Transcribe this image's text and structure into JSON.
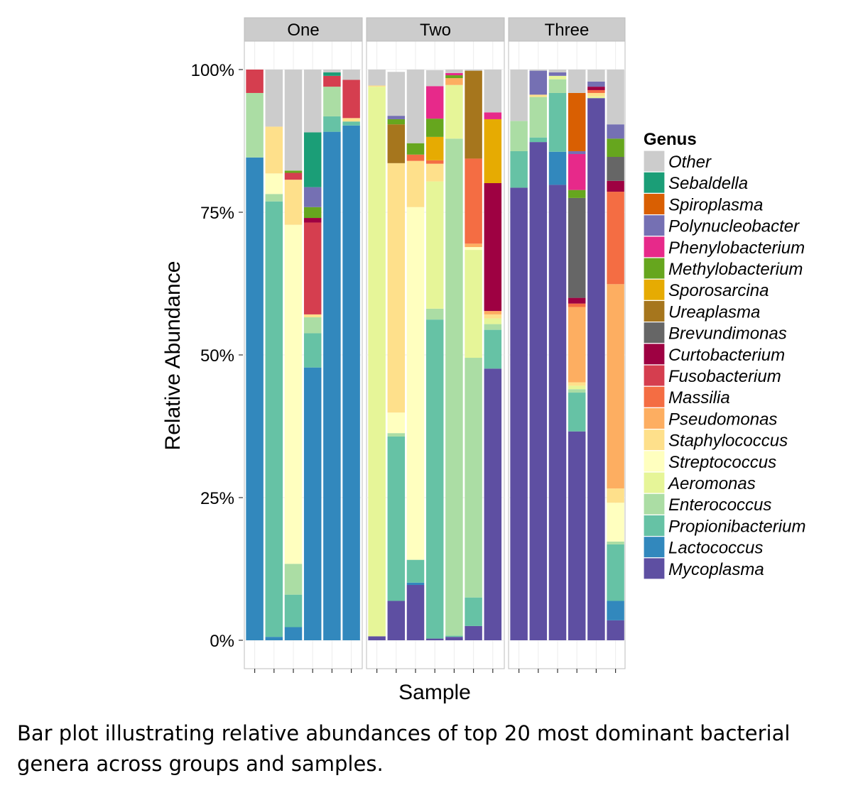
{
  "caption": "Bar plot illustrating relative abundances of top 20 most dominant bacterial genera across groups and samples.",
  "chart_data": {
    "type": "bar",
    "stacked": true,
    "faceted": true,
    "xlabel": "Sample",
    "ylabel": "Relative Abundance",
    "ylim": [
      0,
      100
    ],
    "y_ticks": [
      "0%",
      "25%",
      "50%",
      "75%",
      "100%"
    ],
    "grid": true,
    "legend": {
      "title": "Genus",
      "placement": "right",
      "entries": [
        {
          "name": "Other",
          "color": "#cccccc"
        },
        {
          "name": "Sebaldella",
          "color": "#1b9e77"
        },
        {
          "name": "Spiroplasma",
          "color": "#d95f02"
        },
        {
          "name": "Polynucleobacter",
          "color": "#7570b3"
        },
        {
          "name": "Phenylobacterium",
          "color": "#e7298a"
        },
        {
          "name": "Methylobacterium",
          "color": "#66a61e"
        },
        {
          "name": "Sporosarcina",
          "color": "#e6ab02"
        },
        {
          "name": "Ureaplasma",
          "color": "#a6761d"
        },
        {
          "name": "Brevundimonas",
          "color": "#666666"
        },
        {
          "name": "Curtobacterium",
          "color": "#9e0142"
        },
        {
          "name": "Fusobacterium",
          "color": "#d53e4f"
        },
        {
          "name": "Massilia",
          "color": "#f46d43"
        },
        {
          "name": "Pseudomonas",
          "color": "#fdae61"
        },
        {
          "name": "Staphylococcus",
          "color": "#fee08b"
        },
        {
          "name": "Streptococcus",
          "color": "#ffffbf"
        },
        {
          "name": "Aeromonas",
          "color": "#e6f598"
        },
        {
          "name": "Enterococcus",
          "color": "#abdda4"
        },
        {
          "name": "Propionibacterium",
          "color": "#66c2a5"
        },
        {
          "name": "Lactococcus",
          "color": "#3288bd"
        },
        {
          "name": "Mycoplasma",
          "color": "#5e4fa2"
        }
      ]
    },
    "facets": [
      {
        "name": "One",
        "bars": [
          [
            [
              "Lactococcus",
              84.6
            ],
            [
              "Enterococcus",
              11.3
            ],
            [
              "Fusobacterium",
              4.1
            ]
          ],
          [
            [
              "Lactococcus",
              0.6
            ],
            [
              "Propionibacterium",
              76.3
            ],
            [
              "Enterococcus",
              1.3
            ],
            [
              "Streptococcus",
              3.6
            ],
            [
              "Staphylococcus",
              8.2
            ],
            [
              "Other",
              10.0
            ]
          ],
          [
            [
              "Lactococcus",
              2.3
            ],
            [
              "Propionibacterium",
              5.7
            ],
            [
              "Enterococcus",
              5.4
            ],
            [
              "Streptococcus",
              59.4
            ],
            [
              "Staphylococcus",
              7.9
            ],
            [
              "Fusobacterium",
              1.2
            ],
            [
              "Methylobacterium",
              0.4
            ],
            [
              "Other",
              17.7
            ]
          ],
          [
            [
              "Lactococcus",
              47.8
            ],
            [
              "Propionibacterium",
              6.0
            ],
            [
              "Enterococcus",
              2.8
            ],
            [
              "Staphylococcus",
              0.5
            ],
            [
              "Fusobacterium",
              16.1
            ],
            [
              "Curtobacterium",
              0.8
            ],
            [
              "Methylobacterium",
              1.9
            ],
            [
              "Polynucleobacter",
              3.5
            ],
            [
              "Sebaldella",
              9.6
            ],
            [
              "Other",
              11.0
            ]
          ],
          [
            [
              "Lactococcus",
              89.1
            ],
            [
              "Propionibacterium",
              2.7
            ],
            [
              "Enterococcus",
              5.2
            ],
            [
              "Fusobacterium",
              1.9
            ],
            [
              "Sebaldella",
              0.6
            ],
            [
              "Other",
              0.5
            ]
          ],
          [
            [
              "Lactococcus",
              90.2
            ],
            [
              "Propionibacterium",
              0.7
            ],
            [
              "Staphylococcus",
              0.6
            ],
            [
              "Fusobacterium",
              6.7
            ],
            [
              "Other",
              1.8
            ]
          ]
        ]
      },
      {
        "name": "Two",
        "bars": [
          [
            [
              "Mycoplasma",
              0.7
            ],
            [
              "Aeromonas",
              96.3
            ],
            [
              "Staphylococcus",
              0.2
            ],
            [
              "Other",
              2.8
            ]
          ],
          [
            [
              "Mycoplasma",
              6.9
            ],
            [
              "Propionibacterium",
              28.8
            ],
            [
              "Enterococcus",
              0.6
            ],
            [
              "Streptococcus",
              3.6
            ],
            [
              "Staphylococcus",
              43.7
            ],
            [
              "Ureaplasma",
              6.8
            ],
            [
              "Methylobacterium",
              0.9
            ],
            [
              "Polynucleobacter",
              0.6
            ],
            [
              "Other",
              7.7
            ]
          ],
          [
            [
              "Mycoplasma",
              9.7
            ],
            [
              "Lactococcus",
              0.4
            ],
            [
              "Propionibacterium",
              4.0
            ],
            [
              "Streptococcus",
              61.8
            ],
            [
              "Staphylococcus",
              8.1
            ],
            [
              "Massilia",
              1.1
            ],
            [
              "Methylobacterium",
              2.0
            ],
            [
              "Other",
              12.9
            ]
          ],
          [
            [
              "Mycoplasma",
              0.3
            ],
            [
              "Propionibacterium",
              55.9
            ],
            [
              "Enterococcus",
              1.9
            ],
            [
              "Aeromonas",
              22.3
            ],
            [
              "Staphylococcus",
              3.1
            ],
            [
              "Massilia",
              0.6
            ],
            [
              "Sporosarcina",
              4.1
            ],
            [
              "Methylobacterium",
              3.2
            ],
            [
              "Phenylobacterium",
              5.7
            ],
            [
              "Other",
              2.8
            ]
          ],
          [
            [
              "Mycoplasma",
              0.6
            ],
            [
              "Propionibacterium",
              0.2
            ],
            [
              "Enterococcus",
              87.1
            ],
            [
              "Aeromonas",
              9.4
            ],
            [
              "Pseudomonas",
              1.2
            ],
            [
              "Methylobacterium",
              0.5
            ],
            [
              "Phenylobacterium",
              0.4
            ],
            [
              "Other",
              0.6
            ]
          ],
          [
            [
              "Mycoplasma",
              2.5
            ],
            [
              "Propionibacterium",
              5.0
            ],
            [
              "Enterococcus",
              42.0
            ],
            [
              "Aeromonas",
              18.9
            ],
            [
              "Streptococcus",
              0.5
            ],
            [
              "Pseudomonas",
              0.6
            ],
            [
              "Massilia",
              14.9
            ],
            [
              "Ureaplasma",
              15.4
            ],
            [
              "Other",
              0.2
            ]
          ],
          [
            [
              "Mycoplasma",
              47.6
            ],
            [
              "Propionibacterium",
              6.8
            ],
            [
              "Enterococcus",
              1.0
            ],
            [
              "Aeromonas",
              1.0
            ],
            [
              "Staphylococcus",
              0.7
            ],
            [
              "Pseudomonas",
              0.6
            ],
            [
              "Curtobacterium",
              22.4
            ],
            [
              "Sporosarcina",
              11.2
            ],
            [
              "Phenylobacterium",
              1.2
            ],
            [
              "Other",
              7.5
            ]
          ]
        ]
      },
      {
        "name": "Three",
        "bars": [
          [
            [
              "Mycoplasma",
              79.3
            ],
            [
              "Propionibacterium",
              6.4
            ],
            [
              "Enterococcus",
              5.3
            ],
            [
              "Other",
              9.0
            ]
          ],
          [
            [
              "Mycoplasma",
              87.3
            ],
            [
              "Propionibacterium",
              0.8
            ],
            [
              "Enterococcus",
              7.1
            ],
            [
              "Staphylococcus",
              0.4
            ],
            [
              "Polynucleobacter",
              4.2
            ],
            [
              "Other",
              0.2
            ]
          ],
          [
            [
              "Mycoplasma",
              79.8
            ],
            [
              "Lactococcus",
              5.8
            ],
            [
              "Propionibacterium",
              10.3
            ],
            [
              "Enterococcus",
              2.4
            ],
            [
              "Aeromonas",
              0.6
            ],
            [
              "Polynucleobacter",
              0.6
            ],
            [
              "Other",
              0.5
            ]
          ],
          [
            [
              "Mycoplasma",
              36.6
            ],
            [
              "Propionibacterium",
              6.8
            ],
            [
              "Enterococcus",
              0.6
            ],
            [
              "Aeromonas",
              0.6
            ],
            [
              "Staphylococcus",
              0.6
            ],
            [
              "Pseudomonas",
              13.2
            ],
            [
              "Massilia",
              0.6
            ],
            [
              "Curtobacterium",
              1.0
            ],
            [
              "Brevundimonas",
              17.5
            ],
            [
              "Methylobacterium",
              1.4
            ],
            [
              "Phenylobacterium",
              6.3
            ],
            [
              "Polynucleobacter",
              0.5
            ],
            [
              "Spiroplasma",
              10.2
            ],
            [
              "Other",
              4.1
            ]
          ],
          [
            [
              "Mycoplasma",
              95.0
            ],
            [
              "Aeromonas",
              0.3
            ],
            [
              "Staphylococcus",
              0.6
            ],
            [
              "Massilia",
              0.5
            ],
            [
              "Curtobacterium",
              0.6
            ],
            [
              "Polynucleobacter",
              0.9
            ],
            [
              "Other",
              2.1
            ]
          ],
          [
            [
              "Mycoplasma",
              3.5
            ],
            [
              "Lactococcus",
              3.4
            ],
            [
              "Propionibacterium",
              9.9
            ],
            [
              "Enterococcus",
              0.5
            ],
            [
              "Streptococcus",
              6.8
            ],
            [
              "Staphylococcus",
              2.5
            ],
            [
              "Pseudomonas",
              35.8
            ],
            [
              "Massilia",
              16.2
            ],
            [
              "Curtobacterium",
              1.9
            ],
            [
              "Brevundimonas",
              4.2
            ],
            [
              "Methylobacterium",
              3.2
            ],
            [
              "Polynucleobacter",
              2.5
            ],
            [
              "Other",
              9.6
            ]
          ]
        ]
      }
    ]
  }
}
